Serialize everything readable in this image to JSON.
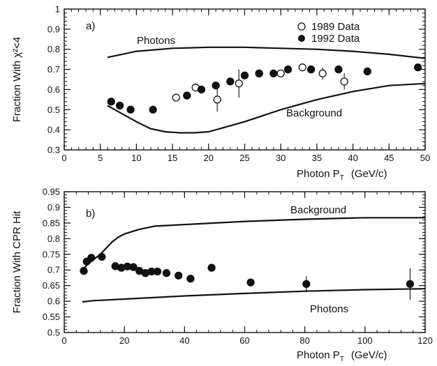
{
  "chart_data": [
    {
      "type": "scatter",
      "panel_label": "a)",
      "xlabel": "Photon P",
      "xlabel_sub": "T",
      "xlabel_unit": "(GeV/c)",
      "ylabel": "Fraction With χ²<4",
      "xlim": [
        0,
        50
      ],
      "ylim": [
        0.3,
        1.0
      ],
      "x_ticks": [
        0,
        5,
        10,
        15,
        20,
        25,
        30,
        35,
        40,
        45,
        50
      ],
      "y_ticks": [
        0.3,
        0.4,
        0.5,
        0.6,
        0.7,
        0.8,
        0.9,
        1.0
      ],
      "x_tick_labels": [
        "0",
        "5",
        "10",
        "15",
        "20",
        "25",
        "30",
        "35",
        "40",
        "45",
        "50"
      ],
      "y_tick_labels": [
        "0.3",
        "0.4",
        "0.5",
        "0.6",
        "0.7",
        "0.8",
        "0.9",
        "1"
      ],
      "legend_position": "top-right",
      "series": [
        {
          "name": "1989 Data",
          "marker": "open-circle",
          "points": [
            {
              "x": 15.5,
              "y": 0.56,
              "err": 0.0
            },
            {
              "x": 18.2,
              "y": 0.61,
              "err": 0.02
            },
            {
              "x": 21.2,
              "y": 0.55,
              "err": 0.06
            },
            {
              "x": 24.2,
              "y": 0.63,
              "err": 0.07
            },
            {
              "x": 27.0,
              "y": 0.68,
              "err": 0.02
            },
            {
              "x": 30.0,
              "y": 0.68,
              "err": 0.0
            },
            {
              "x": 33.0,
              "y": 0.71,
              "err": 0.0
            },
            {
              "x": 35.8,
              "y": 0.68,
              "err": 0.03
            },
            {
              "x": 38.8,
              "y": 0.64,
              "err": 0.04
            }
          ]
        },
        {
          "name": "1992 Data",
          "marker": "filled-circle",
          "points": [
            {
              "x": 6.5,
              "y": 0.54
            },
            {
              "x": 7.7,
              "y": 0.52
            },
            {
              "x": 9.2,
              "y": 0.5
            },
            {
              "x": 12.3,
              "y": 0.5
            },
            {
              "x": 17.0,
              "y": 0.57
            },
            {
              "x": 19.0,
              "y": 0.6
            },
            {
              "x": 21.0,
              "y": 0.62
            },
            {
              "x": 23.0,
              "y": 0.64
            },
            {
              "x": 25.0,
              "y": 0.67
            },
            {
              "x": 27.0,
              "y": 0.68
            },
            {
              "x": 29.0,
              "y": 0.68
            },
            {
              "x": 31.0,
              "y": 0.7
            },
            {
              "x": 34.2,
              "y": 0.7
            },
            {
              "x": 38.0,
              "y": 0.7
            },
            {
              "x": 42.0,
              "y": 0.69
            },
            {
              "x": 49.0,
              "y": 0.71
            }
          ]
        }
      ],
      "curves": [
        {
          "name": "Photons",
          "x": [
            6,
            10,
            15,
            20,
            25,
            30,
            35,
            40,
            45,
            50
          ],
          "y": [
            0.76,
            0.79,
            0.805,
            0.81,
            0.81,
            0.805,
            0.8,
            0.79,
            0.775,
            0.755
          ]
        },
        {
          "name": "Background",
          "x": [
            6,
            8,
            10,
            12,
            14,
            16,
            18,
            20,
            22,
            25,
            30,
            35,
            40,
            45,
            50
          ],
          "y": [
            0.52,
            0.48,
            0.44,
            0.405,
            0.39,
            0.385,
            0.385,
            0.39,
            0.41,
            0.44,
            0.5,
            0.55,
            0.59,
            0.62,
            0.63
          ]
        }
      ]
    },
    {
      "type": "scatter",
      "panel_label": "b)",
      "xlabel": "Photon P",
      "xlabel_sub": "T",
      "xlabel_unit": "(GeV/c)",
      "ylabel": "Fraction With CPR Hit",
      "xlim": [
        0,
        120
      ],
      "ylim": [
        0.5,
        0.95
      ],
      "x_ticks": [
        0,
        20,
        40,
        60,
        80,
        100,
        120
      ],
      "y_ticks": [
        0.5,
        0.55,
        0.6,
        0.65,
        0.7,
        0.75,
        0.8,
        0.85,
        0.9,
        0.95
      ],
      "x_tick_labels": [
        "0",
        "20",
        "40",
        "60",
        "80",
        "100",
        "120"
      ],
      "y_tick_labels": [
        "0.5",
        "0.55",
        "0.6",
        "0.65",
        "0.7",
        "0.75",
        "0.8",
        "0.85",
        "0.9",
        "0.95"
      ],
      "series": [
        {
          "name": "",
          "marker": "filled-circle",
          "points": [
            {
              "x": 6.5,
              "y": 0.697,
              "err": 0.0
            },
            {
              "x": 7.5,
              "y": 0.727,
              "err": 0.0
            },
            {
              "x": 9.0,
              "y": 0.739,
              "err": 0.0
            },
            {
              "x": 12.5,
              "y": 0.742,
              "err": 0.0
            },
            {
              "x": 17.0,
              "y": 0.712,
              "err": 0.0
            },
            {
              "x": 19.0,
              "y": 0.707,
              "err": 0.0
            },
            {
              "x": 21.0,
              "y": 0.711,
              "err": 0.0
            },
            {
              "x": 23.0,
              "y": 0.709,
              "err": 0.0
            },
            {
              "x": 25.0,
              "y": 0.697,
              "err": 0.0
            },
            {
              "x": 27.0,
              "y": 0.69,
              "err": 0.0
            },
            {
              "x": 29.0,
              "y": 0.695,
              "err": 0.0
            },
            {
              "x": 31.0,
              "y": 0.695,
              "err": 0.0
            },
            {
              "x": 34.0,
              "y": 0.69,
              "err": 0.0
            },
            {
              "x": 38.0,
              "y": 0.682,
              "err": 0.008
            },
            {
              "x": 42.0,
              "y": 0.672,
              "err": 0.012
            },
            {
              "x": 49.0,
              "y": 0.707,
              "err": 0.01
            },
            {
              "x": 62.0,
              "y": 0.66,
              "err": 0.012
            },
            {
              "x": 80.5,
              "y": 0.655,
              "err": 0.025
            },
            {
              "x": 115.0,
              "y": 0.655,
              "err": 0.05
            }
          ]
        }
      ],
      "curves": [
        {
          "name": "Background",
          "x": [
            6,
            8,
            10,
            12,
            14,
            16,
            18,
            20,
            25,
            30,
            40,
            60,
            80,
            100,
            120
          ],
          "y": [
            0.7,
            0.72,
            0.735,
            0.75,
            0.77,
            0.79,
            0.805,
            0.815,
            0.83,
            0.84,
            0.845,
            0.855,
            0.862,
            0.867,
            0.867
          ]
        },
        {
          "name": "Photons",
          "x": [
            6,
            10,
            20,
            40,
            60,
            80,
            100,
            120
          ],
          "y": [
            0.598,
            0.602,
            0.607,
            0.617,
            0.625,
            0.632,
            0.637,
            0.64
          ]
        }
      ]
    }
  ]
}
